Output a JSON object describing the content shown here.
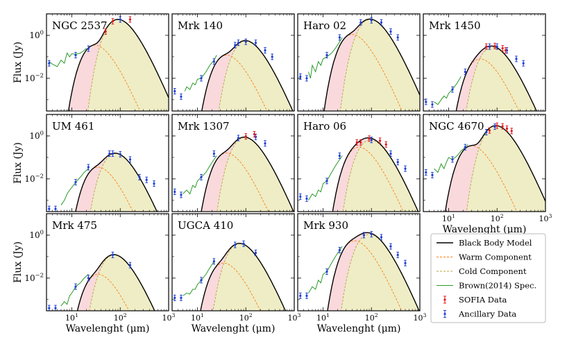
{
  "figure": {
    "ylabel": "Flux (Jy)",
    "xlabel": "Wavelenght (μm)",
    "y_ticks": [
      {
        "value": 1,
        "label": "10",
        "exp": "0"
      },
      {
        "value": 0.01,
        "label": "10",
        "exp": "−2"
      }
    ],
    "x_ticks": [
      {
        "value": 10,
        "label": "10",
        "exp": "1"
      },
      {
        "value": 100,
        "label": "10",
        "exp": "2"
      },
      {
        "value": 1000,
        "label": "10",
        "exp": "3"
      }
    ]
  },
  "colors": {
    "model": "#000000",
    "warm": "#ff7f0e",
    "cold": "#b5a63a",
    "warm_fill": "#f9d9dc",
    "cold_fill": "#eeedc6",
    "spectrum": "#2a9a2a",
    "sofia": "#e31a1c",
    "ancillary": "#1f3fd6"
  },
  "legend": {
    "position": "lower-right",
    "entries": [
      {
        "key": "model",
        "label": "Black Body Model",
        "kind": "line"
      },
      {
        "key": "warm",
        "label": "Warm Component",
        "kind": "dash"
      },
      {
        "key": "cold",
        "label": "Cold Component",
        "kind": "dash"
      },
      {
        "key": "spectrum",
        "label": "Brown(2014) Spec.",
        "kind": "line"
      },
      {
        "key": "sofia",
        "label": "SOFIA Data",
        "kind": "err"
      },
      {
        "key": "ancillary",
        "label": "Ancillary Data",
        "kind": "err"
      }
    ]
  },
  "chart_data": [
    {
      "type": "line",
      "title": "NGC 2537",
      "xscale": "log",
      "yscale": "log",
      "xlim": [
        3,
        1000
      ],
      "ylim": [
        0.0003,
        10
      ],
      "warm": {
        "peak_wl": 30,
        "peak_flux": 0.35
      },
      "cold": {
        "peak_wl": 90,
        "peak_flux": 5.5
      },
      "spectrum": [
        [
          3.4,
          0.06
        ],
        [
          4,
          0.045
        ],
        [
          5,
          0.035
        ],
        [
          6,
          0.07
        ],
        [
          7,
          0.05
        ],
        [
          8,
          0.15
        ],
        [
          9,
          0.1
        ],
        [
          10,
          0.14
        ],
        [
          12,
          0.13
        ],
        [
          15,
          0.15
        ],
        [
          18,
          0.2
        ],
        [
          20,
          0.25
        ]
      ],
      "sofia": [
        [
          50,
          1.5
        ],
        [
          70,
          4.5
        ],
        [
          160,
          5.5
        ]
      ],
      "ancillary": [
        [
          3.4,
          0.05
        ],
        [
          12,
          0.12
        ],
        [
          22,
          0.24
        ],
        [
          100,
          5.5
        ]
      ]
    },
    {
      "type": "line",
      "title": "Mrk 140",
      "xscale": "log",
      "yscale": "log",
      "xlim": [
        3,
        1000
      ],
      "ylim": [
        0.0003,
        10
      ],
      "warm": {
        "peak_wl": 40,
        "peak_flux": 0.12
      },
      "cold": {
        "peak_wl": 100,
        "peak_flux": 0.55
      },
      "spectrum": [
        [
          5.5,
          0.0025
        ],
        [
          6,
          0.004
        ],
        [
          7,
          0.003
        ],
        [
          8,
          0.006
        ],
        [
          9,
          0.005
        ],
        [
          10,
          0.009
        ],
        [
          12,
          0.01
        ],
        [
          15,
          0.02
        ],
        [
          18,
          0.04
        ],
        [
          22,
          0.07
        ],
        [
          25,
          0.12
        ]
      ],
      "sofia": [],
      "ancillary": [
        [
          3.4,
          0.0025
        ],
        [
          4.6,
          0.0014
        ],
        [
          12,
          0.01
        ],
        [
          22,
          0.06
        ],
        [
          60,
          0.35
        ],
        [
          70,
          0.45
        ],
        [
          100,
          0.5
        ],
        [
          160,
          0.45
        ],
        [
          250,
          0.2
        ],
        [
          350,
          0.1
        ]
      ]
    },
    {
      "type": "line",
      "title": "Haro 02",
      "xscale": "log",
      "yscale": "log",
      "xlim": [
        3,
        1000
      ],
      "ylim": [
        0.0003,
        10
      ],
      "warm": {
        "peak_wl": 40,
        "peak_flux": 1.1
      },
      "cold": {
        "peak_wl": 95,
        "peak_flux": 5.5
      },
      "spectrum": [
        [
          5,
          0.02
        ],
        [
          5.5,
          0.01
        ],
        [
          6,
          0.04
        ],
        [
          7,
          0.02
        ],
        [
          8,
          0.06
        ],
        [
          9,
          0.04
        ],
        [
          10,
          0.08
        ],
        [
          12,
          0.1
        ],
        [
          15,
          0.15
        ],
        [
          18,
          0.25
        ],
        [
          22,
          0.5
        ],
        [
          25,
          0.8
        ]
      ],
      "sofia": [],
      "ancillary": [
        [
          3.4,
          0.012
        ],
        [
          4.6,
          0.01
        ],
        [
          12,
          0.12
        ],
        [
          22,
          0.8
        ],
        [
          60,
          4
        ],
        [
          100,
          5
        ],
        [
          160,
          4
        ],
        [
          250,
          1.5
        ],
        [
          350,
          0.8
        ]
      ]
    },
    {
      "type": "line",
      "title": "Mrk 1450",
      "xscale": "log",
      "yscale": "log",
      "xlim": [
        3,
        1000
      ],
      "ylim": [
        0.0003,
        10
      ],
      "warm": {
        "peak_wl": 45,
        "peak_flux": 0.08
      },
      "cold": {
        "peak_wl": 80,
        "peak_flux": 0.28
      },
      "spectrum": [
        [
          5,
          0.0008
        ],
        [
          6,
          0.0006
        ],
        [
          7,
          0.001
        ],
        [
          8,
          0.0015
        ],
        [
          9,
          0.0012
        ],
        [
          10,
          0.002
        ],
        [
          12,
          0.003
        ],
        [
          15,
          0.006
        ],
        [
          18,
          0.012
        ]
      ],
      "sofia": [
        [
          60,
          0.3
        ],
        [
          90,
          0.32
        ],
        [
          130,
          0.25
        ],
        [
          150,
          0.2
        ]
      ],
      "ancillary": [
        [
          3.4,
          0.0008
        ],
        [
          4.6,
          0.0006
        ],
        [
          12,
          0.003
        ],
        [
          22,
          0.02
        ],
        [
          70,
          0.3
        ],
        [
          100,
          0.3
        ],
        [
          160,
          0.2
        ],
        [
          250,
          0.08
        ],
        [
          350,
          0.05
        ]
      ]
    },
    {
      "type": "line",
      "title": "UM 461",
      "xscale": "log",
      "yscale": "log",
      "xlim": [
        3,
        1000
      ],
      "ylim": [
        0.0003,
        10
      ],
      "warm": {
        "peak_wl": 35,
        "peak_flux": 0.035
      },
      "cold": {
        "peak_wl": 80,
        "peak_flux": 0.15
      },
      "spectrum": [
        [
          6,
          0.0006
        ],
        [
          7,
          0.001
        ],
        [
          8,
          0.002
        ],
        [
          9,
          0.003
        ],
        [
          10,
          0.004
        ],
        [
          12,
          0.007
        ],
        [
          15,
          0.012
        ],
        [
          18,
          0.02
        ],
        [
          22,
          0.03
        ]
      ],
      "sofia": [],
      "ancillary": [
        [
          3.4,
          0.0004
        ],
        [
          4.6,
          0.0004
        ],
        [
          12,
          0.007
        ],
        [
          22,
          0.035
        ],
        [
          60,
          0.15
        ],
        [
          70,
          0.15
        ],
        [
          100,
          0.14
        ],
        [
          160,
          0.08
        ],
        [
          250,
          0.012
        ],
        [
          350,
          0.009
        ],
        [
          500,
          0.006
        ]
      ]
    },
    {
      "type": "line",
      "title": "Mrk 1307",
      "xscale": "log",
      "yscale": "log",
      "xlim": [
        3,
        1000
      ],
      "ylim": [
        0.0003,
        10
      ],
      "warm": {
        "peak_wl": 40,
        "peak_flux": 0.16
      },
      "cold": {
        "peak_wl": 95,
        "peak_flux": 0.85
      },
      "spectrum": [
        [
          5,
          0.002
        ],
        [
          6,
          0.003
        ],
        [
          7,
          0.002
        ],
        [
          8,
          0.005
        ],
        [
          9,
          0.004
        ],
        [
          10,
          0.008
        ],
        [
          12,
          0.012
        ],
        [
          15,
          0.02
        ],
        [
          18,
          0.04
        ],
        [
          22,
          0.08
        ],
        [
          25,
          0.12
        ]
      ],
      "sofia": [
        [
          100,
          0.95
        ],
        [
          150,
          1.2
        ]
      ],
      "ancillary": [
        [
          3.4,
          0.0025
        ],
        [
          4.6,
          0.0018
        ],
        [
          12,
          0.012
        ],
        [
          22,
          0.15
        ],
        [
          70,
          0.8
        ],
        [
          160,
          0.9
        ],
        [
          250,
          0.45
        ]
      ]
    },
    {
      "type": "line",
      "title": "Haro 06",
      "xscale": "log",
      "yscale": "log",
      "xlim": [
        3,
        1000
      ],
      "ylim": [
        0.0003,
        10
      ],
      "warm": {
        "peak_wl": 55,
        "peak_flux": 0.3
      },
      "cold": {
        "peak_wl": 95,
        "peak_flux": 0.65
      },
      "spectrum": [
        [
          5,
          0.001
        ],
        [
          6,
          0.002
        ],
        [
          7,
          0.0015
        ],
        [
          8,
          0.003
        ],
        [
          9,
          0.0025
        ],
        [
          10,
          0.006
        ],
        [
          12,
          0.008
        ],
        [
          15,
          0.02
        ],
        [
          18,
          0.04
        ],
        [
          22,
          0.08
        ],
        [
          25,
          0.12
        ]
      ],
      "sofia": [
        [
          50,
          0.5
        ],
        [
          60,
          0.5
        ],
        [
          90,
          0.75
        ],
        [
          150,
          0.6
        ],
        [
          200,
          0.4
        ]
      ],
      "ancillary": [
        [
          3.4,
          0.0015
        ],
        [
          4.6,
          0.0012
        ],
        [
          12,
          0.008
        ],
        [
          22,
          0.12
        ],
        [
          100,
          0.65
        ],
        [
          250,
          0.15
        ],
        [
          350,
          0.06
        ],
        [
          500,
          0.03
        ]
      ]
    },
    {
      "type": "line",
      "title": "NGC 4670",
      "xscale": "log",
      "yscale": "log",
      "xlim": [
        3,
        1000
      ],
      "ylim": [
        0.0003,
        10
      ],
      "warm": {
        "peak_wl": 30,
        "peak_flux": 0.35
      },
      "cold": {
        "peak_wl": 95,
        "peak_flux": 3
      },
      "spectrum": [
        [
          5,
          0.03
        ],
        [
          6,
          0.02
        ],
        [
          7,
          0.05
        ],
        [
          8,
          0.03
        ],
        [
          9,
          0.06
        ],
        [
          10,
          0.1
        ],
        [
          12,
          0.08
        ],
        [
          15,
          0.12
        ],
        [
          18,
          0.2
        ],
        [
          22,
          0.3
        ],
        [
          25,
          0.4
        ]
      ],
      "sofia": [
        [
          70,
          1.8
        ],
        [
          100,
          3
        ],
        [
          130,
          2.8
        ],
        [
          160,
          2.2
        ],
        [
          200,
          1.7
        ]
      ],
      "ancillary": [
        [
          3.4,
          0.02
        ],
        [
          4.6,
          0.015
        ],
        [
          12,
          0.08
        ],
        [
          22,
          0.3
        ],
        [
          60,
          1.5
        ],
        [
          90,
          2.7
        ]
      ]
    },
    {
      "type": "line",
      "title": "Mrk 475",
      "xscale": "log",
      "yscale": "log",
      "xlim": [
        3,
        1000
      ],
      "ylim": [
        0.0003,
        10
      ],
      "warm": {
        "peak_wl": 35,
        "peak_flux": 0.015
      },
      "cold": {
        "peak_wl": 75,
        "peak_flux": 0.12
      },
      "spectrum": [
        [
          6,
          0.0005
        ],
        [
          7,
          0.0008
        ],
        [
          8,
          0.0006
        ],
        [
          9,
          0.0015
        ],
        [
          10,
          0.002
        ],
        [
          12,
          0.004
        ],
        [
          15,
          0.006
        ],
        [
          18,
          0.01
        ],
        [
          22,
          0.015
        ]
      ],
      "sofia": [],
      "ancillary": [
        [
          3.4,
          0.0004
        ],
        [
          4.6,
          0.0004
        ],
        [
          12,
          0.004
        ],
        [
          22,
          0.01
        ],
        [
          70,
          0.12
        ],
        [
          160,
          0.04
        ]
      ]
    },
    {
      "type": "line",
      "title": "UGCA 410",
      "xscale": "log",
      "yscale": "log",
      "xlim": [
        3,
        1000
      ],
      "ylim": [
        0.0003,
        10
      ],
      "warm": {
        "peak_wl": 35,
        "peak_flux": 0.05
      },
      "cold": {
        "peak_wl": 75,
        "peak_flux": 0.4
      },
      "spectrum": [
        [
          5,
          0.0015
        ],
        [
          6,
          0.002
        ],
        [
          7,
          0.0018
        ],
        [
          8,
          0.003
        ],
        [
          9,
          0.003
        ],
        [
          10,
          0.005
        ],
        [
          12,
          0.008
        ],
        [
          15,
          0.015
        ],
        [
          18,
          0.03
        ],
        [
          22,
          0.06
        ]
      ],
      "sofia": [],
      "ancillary": [
        [
          3.4,
          0.0012
        ],
        [
          4.6,
          0.0012
        ],
        [
          12,
          0.008
        ],
        [
          22,
          0.06
        ],
        [
          60,
          0.35
        ],
        [
          90,
          0.4
        ],
        [
          160,
          0.15
        ]
      ]
    },
    {
      "type": "line",
      "title": "Mrk 930",
      "xscale": "log",
      "yscale": "log",
      "xlim": [
        3,
        1000
      ],
      "ylim": [
        0.0003,
        10
      ],
      "warm": {
        "peak_wl": 45,
        "peak_flux": 0.55
      },
      "cold": {
        "peak_wl": 90,
        "peak_flux": 1.1
      },
      "spectrum": [
        [
          5,
          0.002
        ],
        [
          6,
          0.004
        ],
        [
          7,
          0.003
        ],
        [
          8,
          0.008
        ],
        [
          9,
          0.006
        ],
        [
          10,
          0.015
        ],
        [
          12,
          0.02
        ],
        [
          15,
          0.05
        ],
        [
          18,
          0.1
        ],
        [
          22,
          0.2
        ],
        [
          25,
          0.3
        ]
      ],
      "sofia": [],
      "ancillary": [
        [
          3.4,
          0.0015
        ],
        [
          4.6,
          0.0015
        ],
        [
          12,
          0.02
        ],
        [
          22,
          0.2
        ],
        [
          70,
          1
        ],
        [
          100,
          1.1
        ],
        [
          160,
          0.8
        ],
        [
          250,
          0.3
        ],
        [
          350,
          0.12
        ],
        [
          500,
          0.05
        ]
      ]
    }
  ]
}
